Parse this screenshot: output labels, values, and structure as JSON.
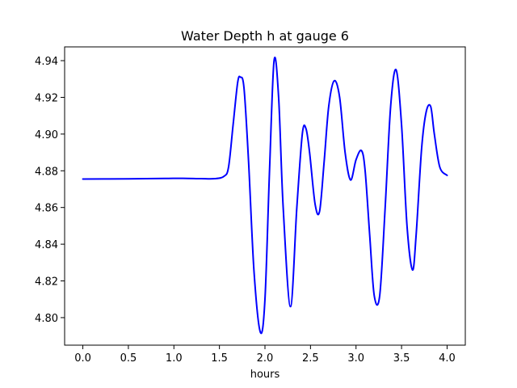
{
  "chart_data": {
    "type": "line",
    "title": "Water Depth h at gauge 6",
    "xlabel": "hours",
    "ylabel": "",
    "xlim": [
      -0.2,
      4.2
    ],
    "ylim": [
      4.785,
      4.9475
    ],
    "xticks": [
      0.0,
      0.5,
      1.0,
      1.5,
      2.0,
      2.5,
      3.0,
      3.5,
      4.0
    ],
    "xtick_labels": [
      "0.0",
      "0.5",
      "1.0",
      "1.5",
      "2.0",
      "2.5",
      "3.0",
      "3.5",
      "4.0"
    ],
    "yticks": [
      4.8,
      4.82,
      4.84,
      4.86,
      4.88,
      4.9,
      4.92,
      4.94
    ],
    "ytick_labels": [
      "4.80",
      "4.82",
      "4.84",
      "4.86",
      "4.88",
      "4.90",
      "4.92",
      "4.94"
    ],
    "grid": false,
    "series": [
      {
        "color": "#0000ff",
        "x": [
          0.0,
          0.5,
          0.9,
          1.1,
          1.3,
          1.45,
          1.55,
          1.6,
          1.65,
          1.7,
          1.73,
          1.77,
          1.82,
          1.88,
          1.95,
          2.0,
          2.05,
          2.1,
          2.15,
          2.2,
          2.28,
          2.35,
          2.41,
          2.45,
          2.49,
          2.55,
          2.6,
          2.65,
          2.7,
          2.76,
          2.82,
          2.88,
          2.94,
          3.0,
          3.06,
          3.1,
          3.15,
          3.2,
          3.26,
          3.32,
          3.38,
          3.44,
          3.5,
          3.56,
          3.62,
          3.66,
          3.72,
          3.77,
          3.82,
          3.86,
          3.92,
          4.0
        ],
        "y": [
          4.8755,
          4.8756,
          4.8758,
          4.8759,
          4.8757,
          4.8757,
          4.877,
          4.882,
          4.905,
          4.928,
          4.931,
          4.925,
          4.885,
          4.825,
          4.792,
          4.81,
          4.88,
          4.94,
          4.92,
          4.86,
          4.806,
          4.86,
          4.9,
          4.903,
          4.89,
          4.862,
          4.858,
          4.885,
          4.915,
          4.929,
          4.92,
          4.89,
          4.875,
          4.886,
          4.891,
          4.88,
          4.845,
          4.812,
          4.812,
          4.86,
          4.915,
          4.935,
          4.905,
          4.85,
          4.826,
          4.845,
          4.892,
          4.912,
          4.915,
          4.9,
          4.882,
          4.8775
        ]
      }
    ]
  }
}
